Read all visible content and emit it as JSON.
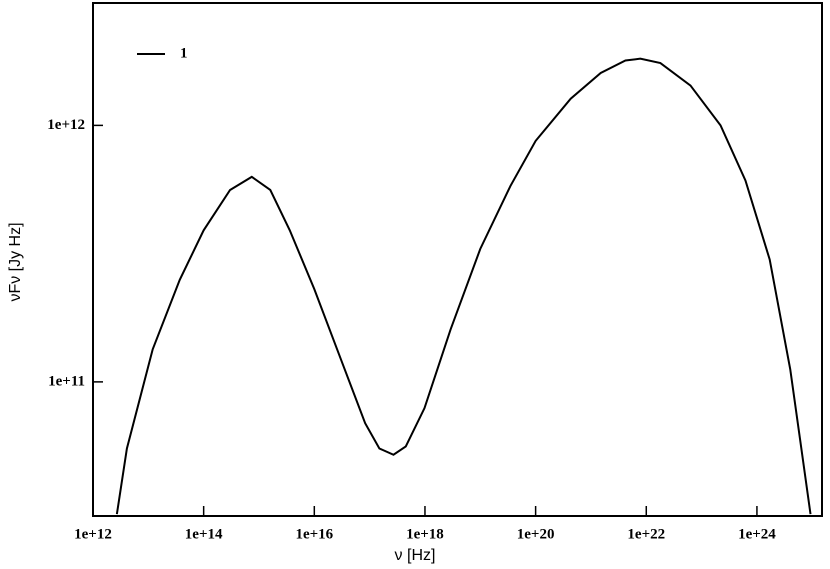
{
  "chart_data": {
    "type": "line",
    "xlabel": "ν [Hz]",
    "ylabel": "νFν [Jy Hz]",
    "xscale": "log",
    "yscale": "log",
    "xlim": [
      1000000000000.0,
      1.5e+25
    ],
    "ylim": [
      30000000000.0,
      3000000000000.0
    ],
    "xticks": [
      {
        "value": 1000000000000.0,
        "label": "1e+12"
      },
      {
        "value": 100000000000000.0,
        "label": "1e+14"
      },
      {
        "value": 1e+16,
        "label": "1e+16"
      },
      {
        "value": 1e+18,
        "label": "1e+18"
      },
      {
        "value": 1e+20,
        "label": "1e+20"
      },
      {
        "value": 1e+22,
        "label": "1e+22"
      },
      {
        "value": 1e+24,
        "label": "1e+24"
      }
    ],
    "yticks": [
      {
        "value": 100000000000.0,
        "label": "1e+11"
      },
      {
        "value": 1000000000000.0,
        "label": "1e+12"
      }
    ],
    "legend": "top-left",
    "x": [
      2700000000000.0,
      4100000000000.0,
      12000000000000.0,
      37000000000000.0,
      100000000000000.0,
      300000000000000.0,
      740000000000000.0,
      1600000000000000.0,
      3600000000000000.0,
      1e+16,
      3e+16,
      8.3e+16,
      1.5e+17,
      2.7e+17,
      4.5e+17,
      9.8e+17,
      2.9e+18,
      1e+19,
      3.5e+19,
      1e+20,
      4.3e+20,
      1.5e+21,
      4.2e+21,
      7.8e+21,
      1.8e+22,
      6.3e+22,
      2.2e+23,
      6.2e+23,
      1.7e+24,
      4e+24,
      6e+24,
      9.3e+24
    ],
    "series": [
      {
        "name": "1",
        "color": "#000000",
        "values": [
          30500000000.0,
          55000000000.0,
          134000000000.0,
          250000000000.0,
          390000000000.0,
          560000000000.0,
          630000000000.0,
          560000000000.0,
          390000000000.0,
          230000000000.0,
          123000000000.0,
          69000000000.0,
          55000000000.0,
          52000000000.0,
          56000000000.0,
          79000000000.0,
          160000000000.0,
          330000000000.0,
          580000000000.0,
          870000000000.0,
          1270000000000.0,
          1600000000000.0,
          1790000000000.0,
          1820000000000.0,
          1750000000000.0,
          1430000000000.0,
          1000000000000.0,
          610000000000.0,
          300000000000.0,
          112000000000.0,
          60000000000.0,
          30500000000.0
        ]
      }
    ]
  }
}
